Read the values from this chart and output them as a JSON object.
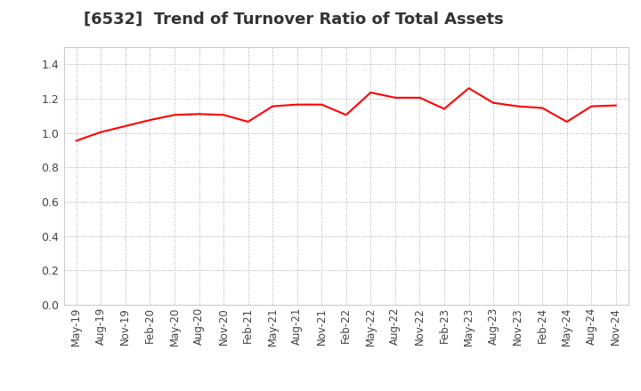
{
  "title": "[6532]  Trend of Turnover Ratio of Total Assets",
  "x_labels": [
    "May-19",
    "Aug-19",
    "Nov-19",
    "Feb-20",
    "May-20",
    "Aug-20",
    "Nov-20",
    "Feb-21",
    "May-21",
    "Aug-21",
    "Nov-21",
    "Feb-22",
    "May-22",
    "Aug-22",
    "Nov-22",
    "Feb-23",
    "May-23",
    "Aug-23",
    "Nov-23",
    "Feb-24",
    "May-24",
    "Aug-24",
    "Nov-24"
  ],
  "values": [
    0.955,
    1.005,
    1.04,
    1.075,
    1.105,
    1.11,
    1.105,
    1.065,
    1.155,
    1.165,
    1.165,
    1.105,
    1.235,
    1.205,
    1.205,
    1.14,
    1.26,
    1.175,
    1.155,
    1.145,
    1.065,
    1.155,
    1.16
  ],
  "line_color": "#ff0000",
  "line_width": 1.5,
  "ylim": [
    0.0,
    1.5
  ],
  "yticks": [
    0.0,
    0.2,
    0.4,
    0.6,
    0.8,
    1.0,
    1.2,
    1.4
  ],
  "title_fontsize": 13,
  "title_color": "#333333",
  "background_color": "#ffffff",
  "grid_color": "#aaaaaa",
  "tick_label_color": "#444444",
  "tick_fontsize": 8.5,
  "ytick_fontsize": 9
}
